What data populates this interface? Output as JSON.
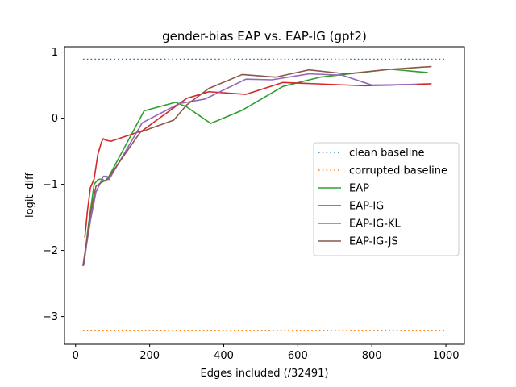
{
  "chart_data": {
    "type": "line",
    "title": "gender-bias EAP vs. EAP-IG (gpt2)",
    "xlabel": "Edges included (/32491)",
    "ylabel": "logit_diff",
    "xlim": [
      -30,
      1050
    ],
    "ylim": [
      -3.42,
      1.08
    ],
    "xticks": [
      0,
      200,
      400,
      600,
      800,
      1000
    ],
    "xtick_labels": [
      "0",
      "200",
      "400",
      "600",
      "800",
      "1000"
    ],
    "yticks": [
      1,
      0,
      -1,
      -2,
      -3
    ],
    "ytick_labels": [
      "1",
      "0",
      "−1",
      "−2",
      "−3"
    ],
    "grid": false,
    "legend_position": "center-right",
    "series": [
      {
        "name": "clean baseline",
        "color": "#1f77b4",
        "style": "dotted",
        "x": [
          20,
          1000
        ],
        "y": [
          0.89,
          0.89
        ]
      },
      {
        "name": "corrupted baseline",
        "color": "#ff7f0e",
        "style": "dotted",
        "x": [
          20,
          1000
        ],
        "y": [
          -3.21,
          -3.21
        ]
      },
      {
        "name": "EAP",
        "color": "#2ca02c",
        "style": "solid",
        "x": [
          22,
          35,
          50,
          60,
          70,
          80,
          90,
          185,
          270,
          300,
          365,
          450,
          560,
          660,
          850,
          950
        ],
        "y": [
          -2.22,
          -1.6,
          -1.0,
          -0.93,
          -0.92,
          -0.95,
          -0.88,
          0.11,
          0.24,
          0.17,
          -0.08,
          0.12,
          0.48,
          0.62,
          0.74,
          0.69
        ]
      },
      {
        "name": "EAP-IG",
        "color": "#d62728",
        "style": "solid",
        "x": [
          25,
          32,
          40,
          50,
          60,
          70,
          75,
          80,
          95,
          180,
          300,
          360,
          460,
          560,
          780,
          850,
          960
        ],
        "y": [
          -1.8,
          -1.4,
          -1.05,
          -0.92,
          -0.55,
          -0.36,
          -0.31,
          -0.33,
          -0.35,
          -0.19,
          0.3,
          0.4,
          0.36,
          0.54,
          0.49,
          0.5,
          0.52
        ]
      },
      {
        "name": "EAP-IG-KL",
        "color": "#9467bd",
        "style": "solid",
        "x": [
          22,
          30,
          40,
          55,
          65,
          75,
          85,
          90,
          180,
          280,
          350,
          460,
          530,
          630,
          720,
          800,
          920
        ],
        "y": [
          -2.22,
          -1.9,
          -1.55,
          -1.12,
          -1.0,
          -0.88,
          -0.88,
          -0.93,
          -0.07,
          0.22,
          0.29,
          0.59,
          0.58,
          0.67,
          0.65,
          0.5,
          0.51
        ]
      },
      {
        "name": "EAP-IG-JS",
        "color": "#8c564b",
        "style": "solid",
        "x": [
          20,
          30,
          40,
          55,
          70,
          85,
          175,
          265,
          300,
          360,
          450,
          540,
          630,
          730,
          850,
          960
        ],
        "y": [
          -2.23,
          -1.85,
          -1.45,
          -1.03,
          -0.97,
          -0.93,
          -0.21,
          -0.03,
          0.2,
          0.45,
          0.66,
          0.62,
          0.73,
          0.67,
          0.74,
          0.78
        ]
      }
    ]
  }
}
